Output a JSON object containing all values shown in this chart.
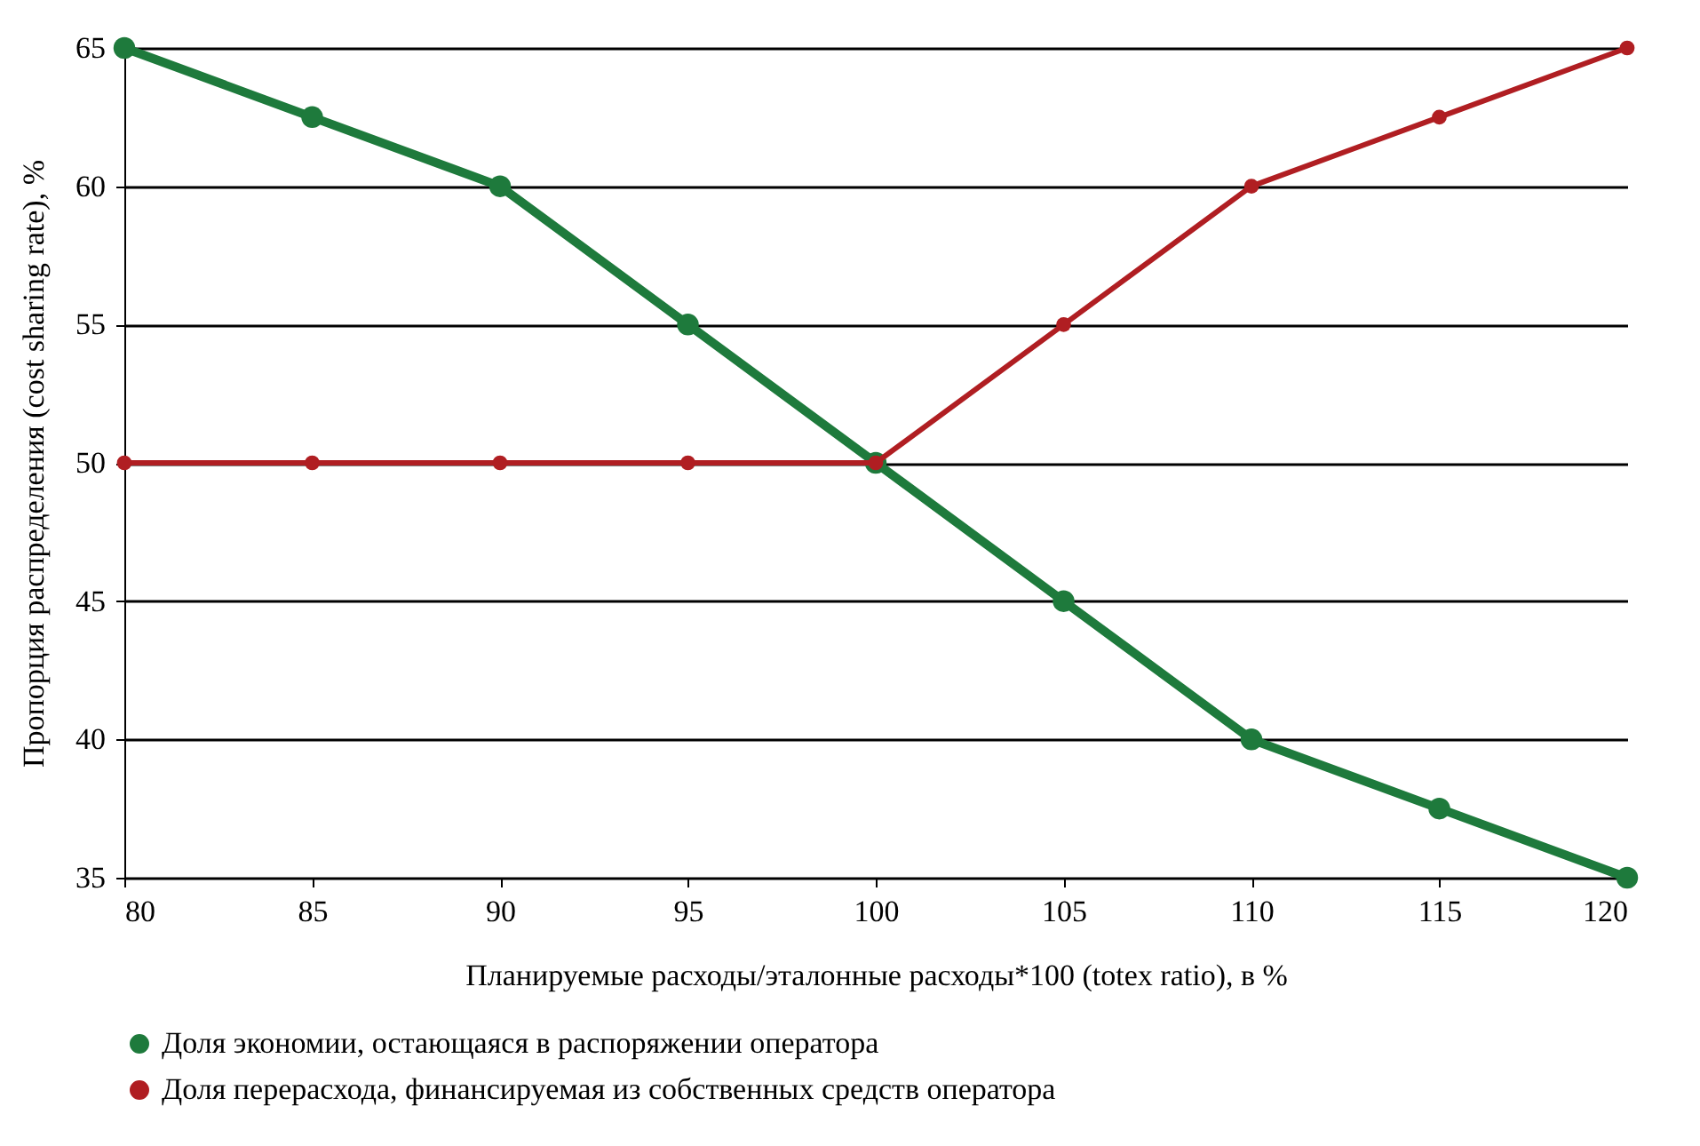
{
  "chart_data": {
    "type": "line",
    "xlabel": "Планируемые расходы/эталонные расходы*100 (totex ratio), в %",
    "ylabel": "Пропорция распределения (cost sharing rate), %",
    "x": [
      80,
      85,
      90,
      95,
      100,
      105,
      110,
      115,
      120
    ],
    "series": [
      {
        "name": "Доля экономии, остающаяся в распоряжении оператора",
        "color": "#1e7a3c",
        "values": [
          65,
          62.5,
          60,
          55,
          50,
          45,
          40,
          37.5,
          35
        ]
      },
      {
        "name": "Доля перерасхода, финансируемая из собственных средств оператора",
        "color": "#b01e22",
        "values": [
          50,
          50,
          50,
          50,
          50,
          55,
          60,
          62.5,
          65
        ]
      }
    ],
    "xlim": [
      80,
      120
    ],
    "xticks": [
      80,
      85,
      90,
      95,
      100,
      105,
      110,
      115,
      120
    ],
    "ylim": [
      35,
      65
    ],
    "yticks": [
      35,
      40,
      45,
      50,
      55,
      60,
      65
    ],
    "grid": "y",
    "legend": "bottom",
    "marker": "circle",
    "line_style": "solid"
  }
}
